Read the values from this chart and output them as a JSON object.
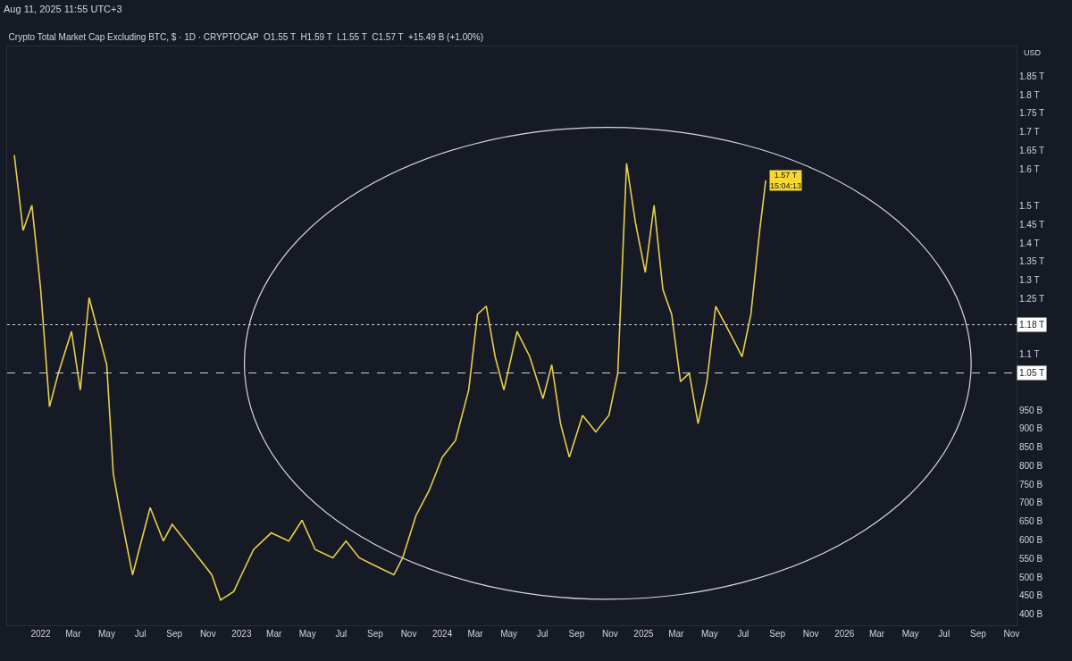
{
  "chart_data": {
    "type": "line",
    "title": "Crypto Total Market Cap Excluding BTC, $ · 1D · CRYPTOCAP  O1.55 T  H1.59 T  L1.55 T  C1.57 T  +15.49 B (+1.00%)",
    "annotations": [
      "Aug 11, 2025 11:55 UTC+3",
      "USD",
      {
        "text": "1.57 T\n15:04:13",
        "x": "2025-08-11",
        "y": 1569000000000
      }
    ],
    "series": [
      {
        "color": "#e6cf4a",
        "x": [
          "2021-11-14",
          "2021-11-30",
          "2021-12-16",
          "2022-01-01",
          "2022-01-17",
          "2022-02-02",
          "2022-02-26",
          "2022-03-14",
          "2022-03-30",
          "2022-04-15",
          "2022-05-01",
          "2022-05-13",
          "2022-05-24",
          "2022-06-17",
          "2022-07-03",
          "2022-07-19",
          "2022-08-12",
          "2022-08-28",
          "2022-09-21",
          "2022-10-15",
          "2022-11-08",
          "2022-11-24",
          "2022-12-18",
          "2023-01-01",
          "2023-01-23",
          "2023-02-24",
          "2023-03-28",
          "2023-04-21",
          "2023-05-15",
          "2023-06-16",
          "2023-07-10",
          "2023-08-03",
          "2023-09-03",
          "2023-10-05",
          "2023-10-21",
          "2023-11-14",
          "2023-12-08",
          "2024-01-01",
          "2024-01-25",
          "2024-02-18",
          "2024-03-05",
          "2024-03-21",
          "2024-04-06",
          "2024-04-22",
          "2024-05-16",
          "2024-06-08",
          "2024-07-02",
          "2024-07-18",
          "2024-08-03",
          "2024-08-19",
          "2024-09-12",
          "2024-10-06",
          "2024-10-30",
          "2024-11-15",
          "2024-12-01",
          "2024-12-17",
          "2025-01-04",
          "2025-01-20",
          "2025-02-05",
          "2025-02-21",
          "2025-03-09",
          "2025-03-25",
          "2025-04-10",
          "2025-04-26",
          "2025-05-12",
          "2025-05-28",
          "2025-06-13",
          "2025-06-29",
          "2025-07-15",
          "2025-07-31",
          "2025-08-11"
        ],
        "values": [
          1637000000000.0,
          1434000000000.0,
          1502000000000.0,
          1275000000000.0,
          959000000000.0,
          1049000000000.0,
          1162000000000.0,
          1004000000000.0,
          1253000000000.0,
          1162000000000.0,
          1072000000000.0,
          778000000000.0,
          687000000000.0,
          506000000000.0,
          597000000000.0,
          687000000000.0,
          597000000000.0,
          642000000000.0,
          597000000000.0,
          552000000000.0,
          506000000000.0,
          438000000000.0,
          461000000000.0,
          506000000000.0,
          574000000000.0,
          619000000000.0,
          597000000000.0,
          653000000000.0,
          574000000000.0,
          552000000000.0,
          597000000000.0,
          552000000000.0,
          529000000000.0,
          506000000000.0,
          552000000000.0,
          665000000000.0,
          733000000000.0,
          823000000000.0,
          868000000000.0,
          1004000000000.0,
          1208000000000.0,
          1230000000000.0,
          1094000000000.0,
          1004000000000.0,
          1162000000000.0,
          1094000000000.0,
          981000000000.0,
          1072000000000.0,
          913000000000.0,
          823000000000.0,
          936000000000.0,
          891000000000.0,
          936000000000.0,
          1049000000000.0,
          1615000000000.0,
          1456000000000.0,
          1321000000000.0,
          1502000000000.0,
          1275000000000.0,
          1208000000000.0,
          1027000000000.0,
          1049000000000.0,
          913000000000.0,
          1027000000000.0,
          1230000000000.0,
          1185000000000.0,
          1140000000000.0,
          1094000000000.0,
          1208000000000.0,
          1434000000000.0,
          1569000000000.0
        ]
      }
    ],
    "xlim": [
      "2021-11-01",
      "2026-11-10"
    ],
    "xticks": [
      {
        "value": "2022-01-01",
        "label": "2022"
      },
      {
        "value": "2022-03-01",
        "label": "Mar"
      },
      {
        "value": "2022-05-01",
        "label": "May"
      },
      {
        "value": "2022-07-01",
        "label": "Jul"
      },
      {
        "value": "2022-09-01",
        "label": "Sep"
      },
      {
        "value": "2022-11-01",
        "label": "Nov"
      },
      {
        "value": "2023-01-01",
        "label": "2023"
      },
      {
        "value": "2023-03-01",
        "label": "Mar"
      },
      {
        "value": "2023-05-01",
        "label": "May"
      },
      {
        "value": "2023-07-01",
        "label": "Jul"
      },
      {
        "value": "2023-09-01",
        "label": "Sep"
      },
      {
        "value": "2023-11-01",
        "label": "Nov"
      },
      {
        "value": "2024-01-01",
        "label": "2024"
      },
      {
        "value": "2024-03-01",
        "label": "Mar"
      },
      {
        "value": "2024-05-01",
        "label": "May"
      },
      {
        "value": "2024-07-01",
        "label": "Jul"
      },
      {
        "value": "2024-09-01",
        "label": "Sep"
      },
      {
        "value": "2024-11-01",
        "label": "Nov"
      },
      {
        "value": "2025-01-01",
        "label": "2025"
      },
      {
        "value": "2025-03-01",
        "label": "Mar"
      },
      {
        "value": "2025-05-01",
        "label": "May"
      },
      {
        "value": "2025-07-01",
        "label": "Jul"
      },
      {
        "value": "2025-09-01",
        "label": "Sep"
      },
      {
        "value": "2025-11-01",
        "label": "Nov"
      },
      {
        "value": "2026-01-01",
        "label": "2026"
      },
      {
        "value": "2026-03-01",
        "label": "Mar"
      },
      {
        "value": "2026-05-01",
        "label": "May"
      },
      {
        "value": "2026-07-01",
        "label": "Jul"
      },
      {
        "value": "2026-09-01",
        "label": "Sep"
      },
      {
        "value": "2026-11-01",
        "label": "Nov"
      }
    ],
    "ylim": [
      370000000000.0,
      1930000000000.0
    ],
    "yticks": [
      {
        "value": 400000000000.0,
        "label": "400 B"
      },
      {
        "value": 450000000000.0,
        "label": "450 B"
      },
      {
        "value": 500000000000.0,
        "label": "500 B"
      },
      {
        "value": 550000000000.0,
        "label": "550 B"
      },
      {
        "value": 600000000000.0,
        "label": "600 B"
      },
      {
        "value": 650000000000.0,
        "label": "650 B"
      },
      {
        "value": 700000000000.0,
        "label": "700 B"
      },
      {
        "value": 750000000000.0,
        "label": "750 B"
      },
      {
        "value": 800000000000.0,
        "label": "800 B"
      },
      {
        "value": 850000000000.0,
        "label": "850 B"
      },
      {
        "value": 900000000000.0,
        "label": "900 B"
      },
      {
        "value": 950000000000.0,
        "label": "950 B"
      },
      {
        "value": 1100000000000.0,
        "label": "1.1 T"
      },
      {
        "value": 1250000000000.0,
        "label": "1.25 T"
      },
      {
        "value": 1300000000000.0,
        "label": "1.3 T"
      },
      {
        "value": 1350000000000.0,
        "label": "1.35 T"
      },
      {
        "value": 1400000000000.0,
        "label": "1.4 T"
      },
      {
        "value": 1450000000000.0,
        "label": "1.45 T"
      },
      {
        "value": 1500000000000.0,
        "label": "1.5 T"
      },
      {
        "value": 1600000000000.0,
        "label": "1.6 T"
      },
      {
        "value": 1650000000000.0,
        "label": "1.65 T"
      },
      {
        "value": 1700000000000.0,
        "label": "1.7 T"
      },
      {
        "value": 1750000000000.0,
        "label": "1.75 T"
      },
      {
        "value": 1800000000000.0,
        "label": "1.8 T"
      },
      {
        "value": 1850000000000.0,
        "label": "1.85 T"
      }
    ],
    "ref_lines": [
      {
        "axis": "y",
        "value": 1050000000000.0,
        "label": "1.05 T",
        "color": "#d0d3dc",
        "line_style": "dashed"
      },
      {
        "axis": "y",
        "value": 1180000000000.0,
        "label": "1.18 T",
        "color": "#d0d3dc",
        "line_style": "dotted"
      }
    ],
    "grid": false,
    "marker": "none",
    "line_style": "solid"
  }
}
